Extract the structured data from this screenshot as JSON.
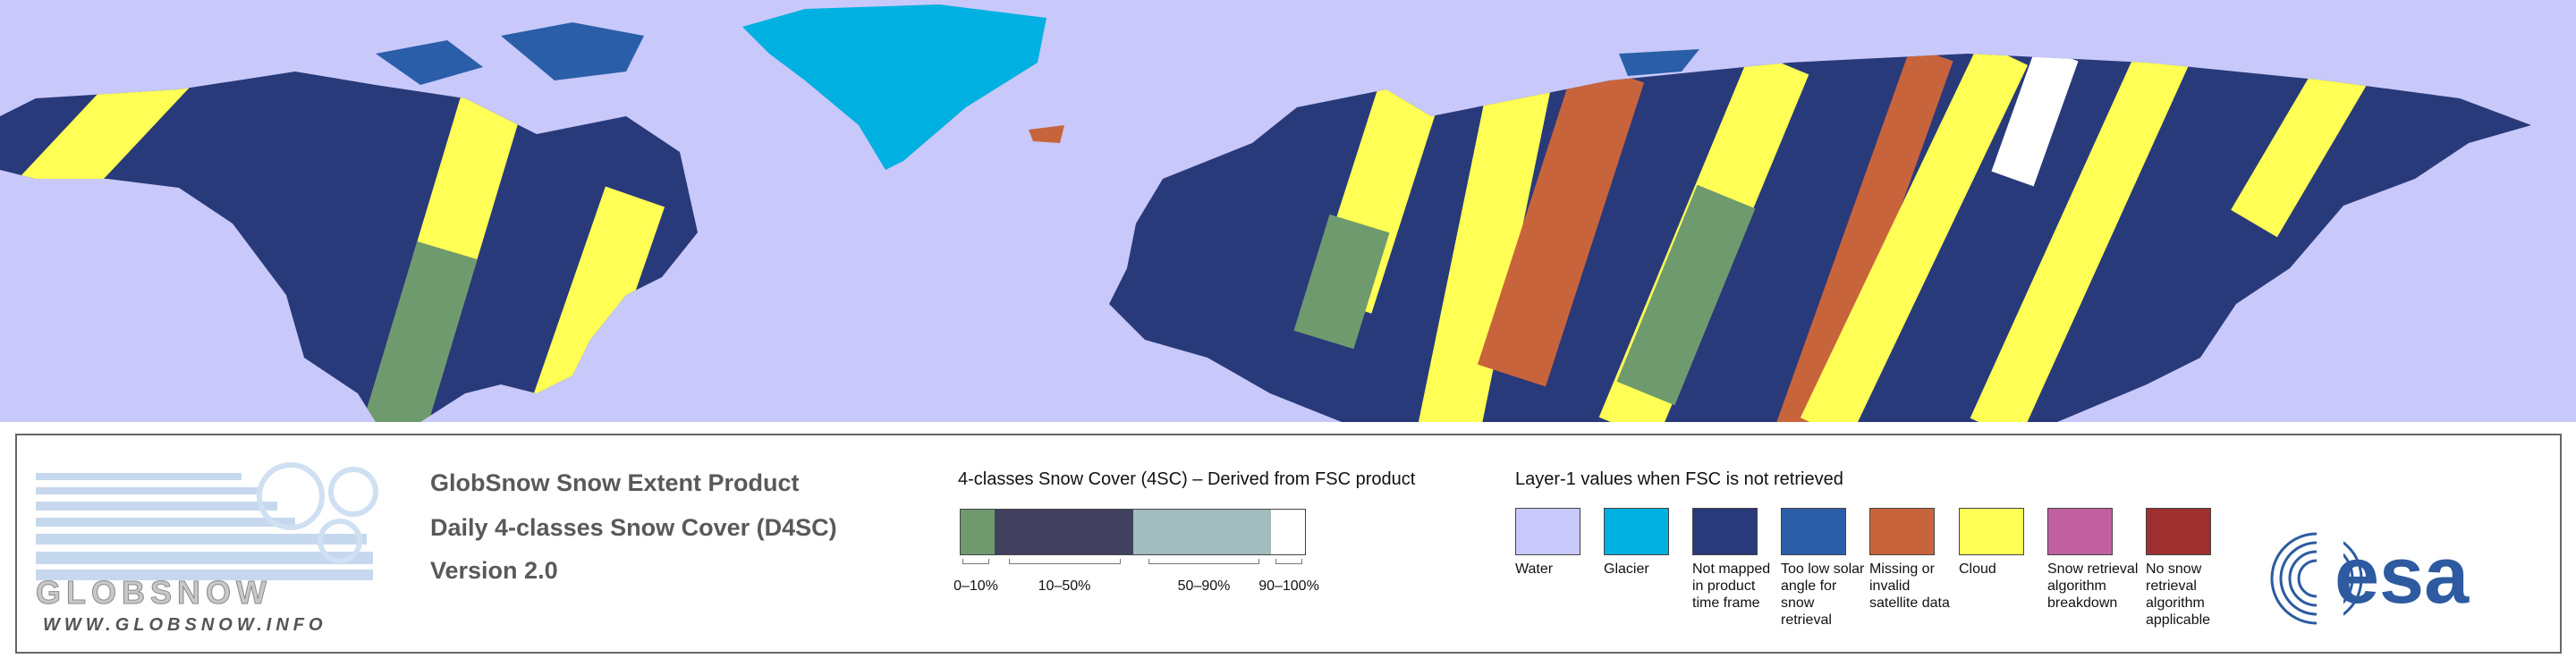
{
  "header": {
    "title": "GlobSnow Snow Extent Product",
    "subtitle": "Daily 4-classes Snow Cover (D4SC)",
    "version": "Version 2.0"
  },
  "logo": {
    "name": "GLOBSNOW",
    "url": "WWW.GLOBSNOW.INFO"
  },
  "legend_4sc": {
    "title": "4-classes Snow Cover (4SC) – Derived from FSC product",
    "classes": [
      {
        "label": "0–10%",
        "color": "#6f9a6e"
      },
      {
        "label": "10–50%",
        "color": "#41415f"
      },
      {
        "label": "50–90%",
        "color": "#a0bcbe"
      },
      {
        "label": "90–100%",
        "color": "#ffffff"
      }
    ]
  },
  "legend_layer1": {
    "title": "Layer-1 values when FSC is not retrieved",
    "items": [
      {
        "label": "Water",
        "color": "#c8c8fa"
      },
      {
        "label": "Glacier",
        "color": "#00b0e0"
      },
      {
        "label": "Not mapped in product time frame",
        "color": "#293a7a"
      },
      {
        "label": "Too low solar angle for snow retrieval",
        "color": "#2a5ea8"
      },
      {
        "label": "Missing or invalid satellite data",
        "color": "#c8643c"
      },
      {
        "label": "Cloud",
        "color": "#ffff55"
      },
      {
        "label": "Snow retrieval algorithm breakdown",
        "color": "#c060a0"
      },
      {
        "label": "No snow retrieval algorithm applicable",
        "color": "#a03030"
      }
    ]
  },
  "esa_logo": "esa"
}
